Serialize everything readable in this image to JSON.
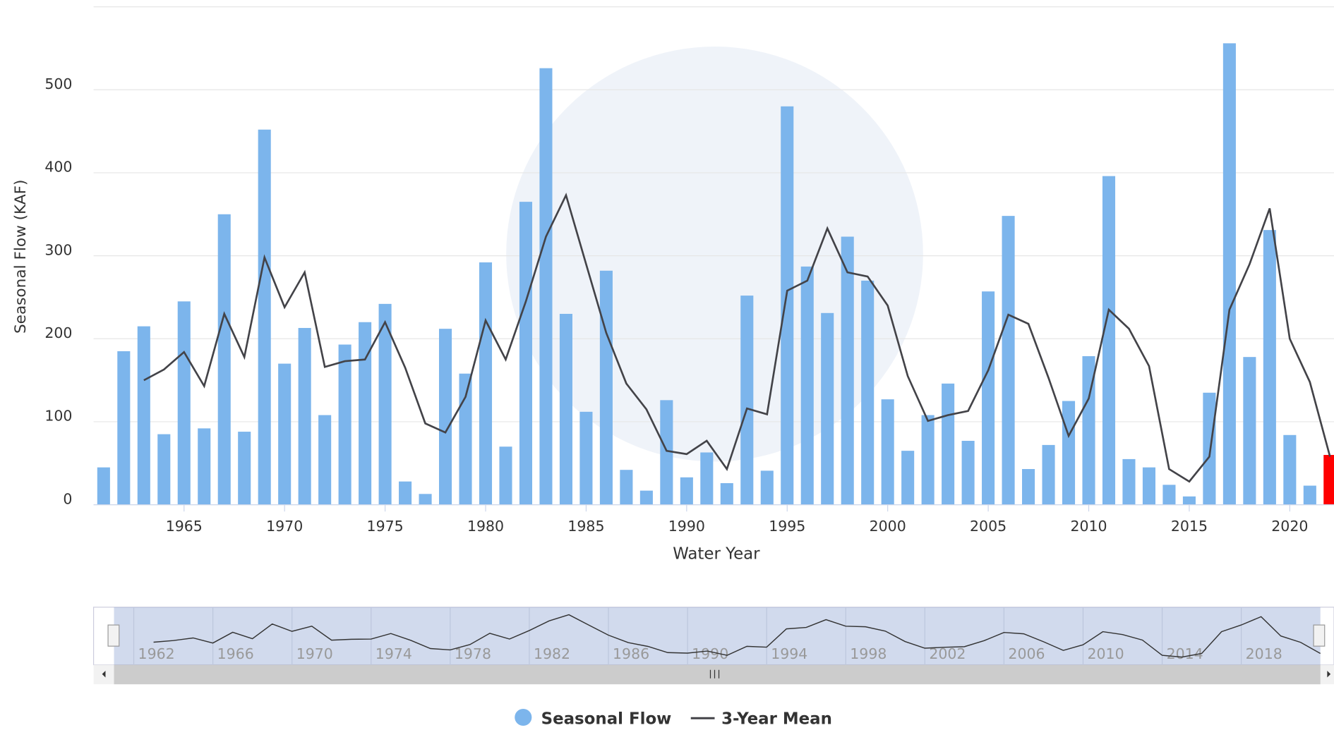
{
  "chart_data": {
    "type": "bar_line",
    "x_axis_label": "Water Year",
    "y_axis_label": "Seasonal Flow (KAF)",
    "x": [
      1961,
      1962,
      1963,
      1964,
      1965,
      1966,
      1967,
      1968,
      1969,
      1970,
      1971,
      1972,
      1973,
      1974,
      1975,
      1976,
      1977,
      1978,
      1979,
      1980,
      1981,
      1982,
      1983,
      1984,
      1985,
      1986,
      1987,
      1988,
      1989,
      1990,
      1991,
      1992,
      1993,
      1994,
      1995,
      1996,
      1997,
      1998,
      1999,
      2000,
      2001,
      2002,
      2003,
      2004,
      2005,
      2006,
      2007,
      2008,
      2009,
      2010,
      2011,
      2012,
      2013,
      2014,
      2015,
      2016,
      2017,
      2018,
      2019,
      2020,
      2021,
      2022
    ],
    "series": [
      {
        "name": "Seasonal Flow",
        "color": "#7cb5ec",
        "highlight_color": "#ff0000",
        "values": [
          45,
          185,
          215,
          85,
          245,
          92,
          350,
          88,
          452,
          170,
          213,
          108,
          193,
          220,
          242,
          28,
          13,
          212,
          158,
          292,
          70,
          365,
          526,
          230,
          112,
          282,
          42,
          17,
          126,
          33,
          63,
          26,
          252,
          41,
          480,
          287,
          231,
          323,
          270,
          127,
          65,
          108,
          146,
          77,
          257,
          348,
          43,
          72,
          125,
          179,
          396,
          55,
          45,
          24,
          10,
          135,
          556,
          178,
          331,
          84,
          23,
          60
        ]
      },
      {
        "name": "3-Year Mean",
        "color": "#434348",
        "values": [
          null,
          null,
          150,
          163,
          184,
          143,
          230,
          178,
          298,
          238,
          280,
          166,
          173,
          175,
          220,
          165,
          98,
          87,
          130,
          222,
          175,
          245,
          323,
          373,
          290,
          207,
          146,
          115,
          65,
          61,
          77,
          43,
          116,
          109,
          258,
          270,
          333,
          280,
          275,
          240,
          155,
          101,
          108,
          113,
          162,
          229,
          218,
          153,
          83,
          128,
          235,
          212,
          167,
          43,
          28,
          58,
          235,
          290,
          357,
          200,
          148,
          58
        ]
      }
    ],
    "xlim": [
      1960.5,
      2022.2
    ],
    "xticks": [
      1965,
      1970,
      1975,
      1980,
      1985,
      1990,
      1995,
      2000,
      2005,
      2010,
      2015,
      2020
    ],
    "ylim": [
      0,
      600
    ],
    "yticks": [
      0,
      100,
      200,
      300,
      400,
      500
    ],
    "grid": true,
    "navigator_xlim": [
      1961,
      2022
    ],
    "navigator_ticks": [
      1962,
      1966,
      1970,
      1974,
      1978,
      1982,
      1986,
      1990,
      1994,
      1998,
      2002,
      2006,
      2010,
      2014,
      2018
    ]
  }
}
